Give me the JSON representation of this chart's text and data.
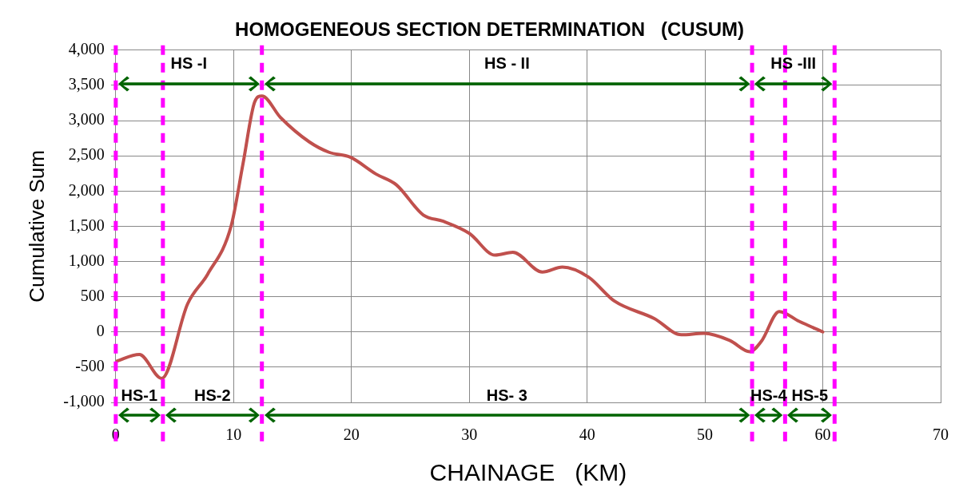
{
  "chart_data": {
    "type": "line",
    "title": "HOMOGENEOUS SECTION DETERMINATION   (CUSUM)",
    "xlabel": "CHAINAGE   (KM)",
    "ylabel": "Cumulative Sum",
    "xlim": [
      0,
      70
    ],
    "xticks": [
      0,
      10,
      20,
      30,
      40,
      50,
      60,
      70
    ],
    "ylim": [
      -1000,
      4000
    ],
    "yticks": [
      {
        "value": -1000,
        "label": "-1,000"
      },
      -500,
      0,
      500,
      {
        "value": 1000,
        "label": "1,000"
      },
      {
        "value": 1500,
        "label": "1,500"
      },
      {
        "value": 2000,
        "label": "2,000"
      },
      {
        "value": 2500,
        "label": "2,500"
      },
      {
        "value": 3000,
        "label": "3,000"
      },
      {
        "value": 3500,
        "label": "3,500"
      },
      {
        "value": 4000,
        "label": "4,000"
      }
    ],
    "grid": true,
    "legend": false,
    "marker": "none",
    "line_style": "solid",
    "series": [
      {
        "color": "#c0504d",
        "x": [
          0,
          2,
          3.9,
          6.1,
          7.8,
          9.8,
          10.8,
          11.8,
          12.4,
          14,
          16.4,
          18.1,
          19.9,
          22.1,
          23.8,
          26.1,
          27.8,
          30,
          32.2,
          33.7,
          36.2,
          37.9,
          40.1,
          42.3,
          45.7,
          48,
          49.9,
          52.1,
          53.8,
          54.8,
          56.3,
          58,
          60
        ],
        "values": [
          -420,
          -320,
          -660,
          400,
          820,
          1510,
          2390,
          3270,
          3350,
          3040,
          2700,
          2550,
          2480,
          2240,
          2090,
          1660,
          1570,
          1400,
          1090,
          1130,
          850,
          920,
          780,
          440,
          190,
          -40,
          -20,
          -120,
          -280,
          -130,
          290,
          150,
          0
        ]
      }
    ],
    "ref_lines": [
      {
        "axis": "x",
        "value": 0,
        "color": "#ff00ff",
        "line_style": "dashed"
      },
      {
        "axis": "x",
        "value": 4,
        "color": "#ff00ff",
        "line_style": "dashed"
      },
      {
        "axis": "x",
        "value": 12.4,
        "color": "#ff00ff",
        "line_style": "dashed"
      },
      {
        "axis": "x",
        "value": 54,
        "color": "#ff00ff",
        "line_style": "dashed"
      },
      {
        "axis": "x",
        "value": 56.8,
        "color": "#ff00ff",
        "line_style": "dashed"
      },
      {
        "axis": "x",
        "value": 61,
        "color": "#ff00ff",
        "line_style": "dashed"
      }
    ],
    "annotations": [
      "HS -I",
      "HS - II",
      "HS -III",
      "HS-1",
      "HS-2",
      "HS- 3",
      "HS-4",
      "HS-5"
    ]
  }
}
